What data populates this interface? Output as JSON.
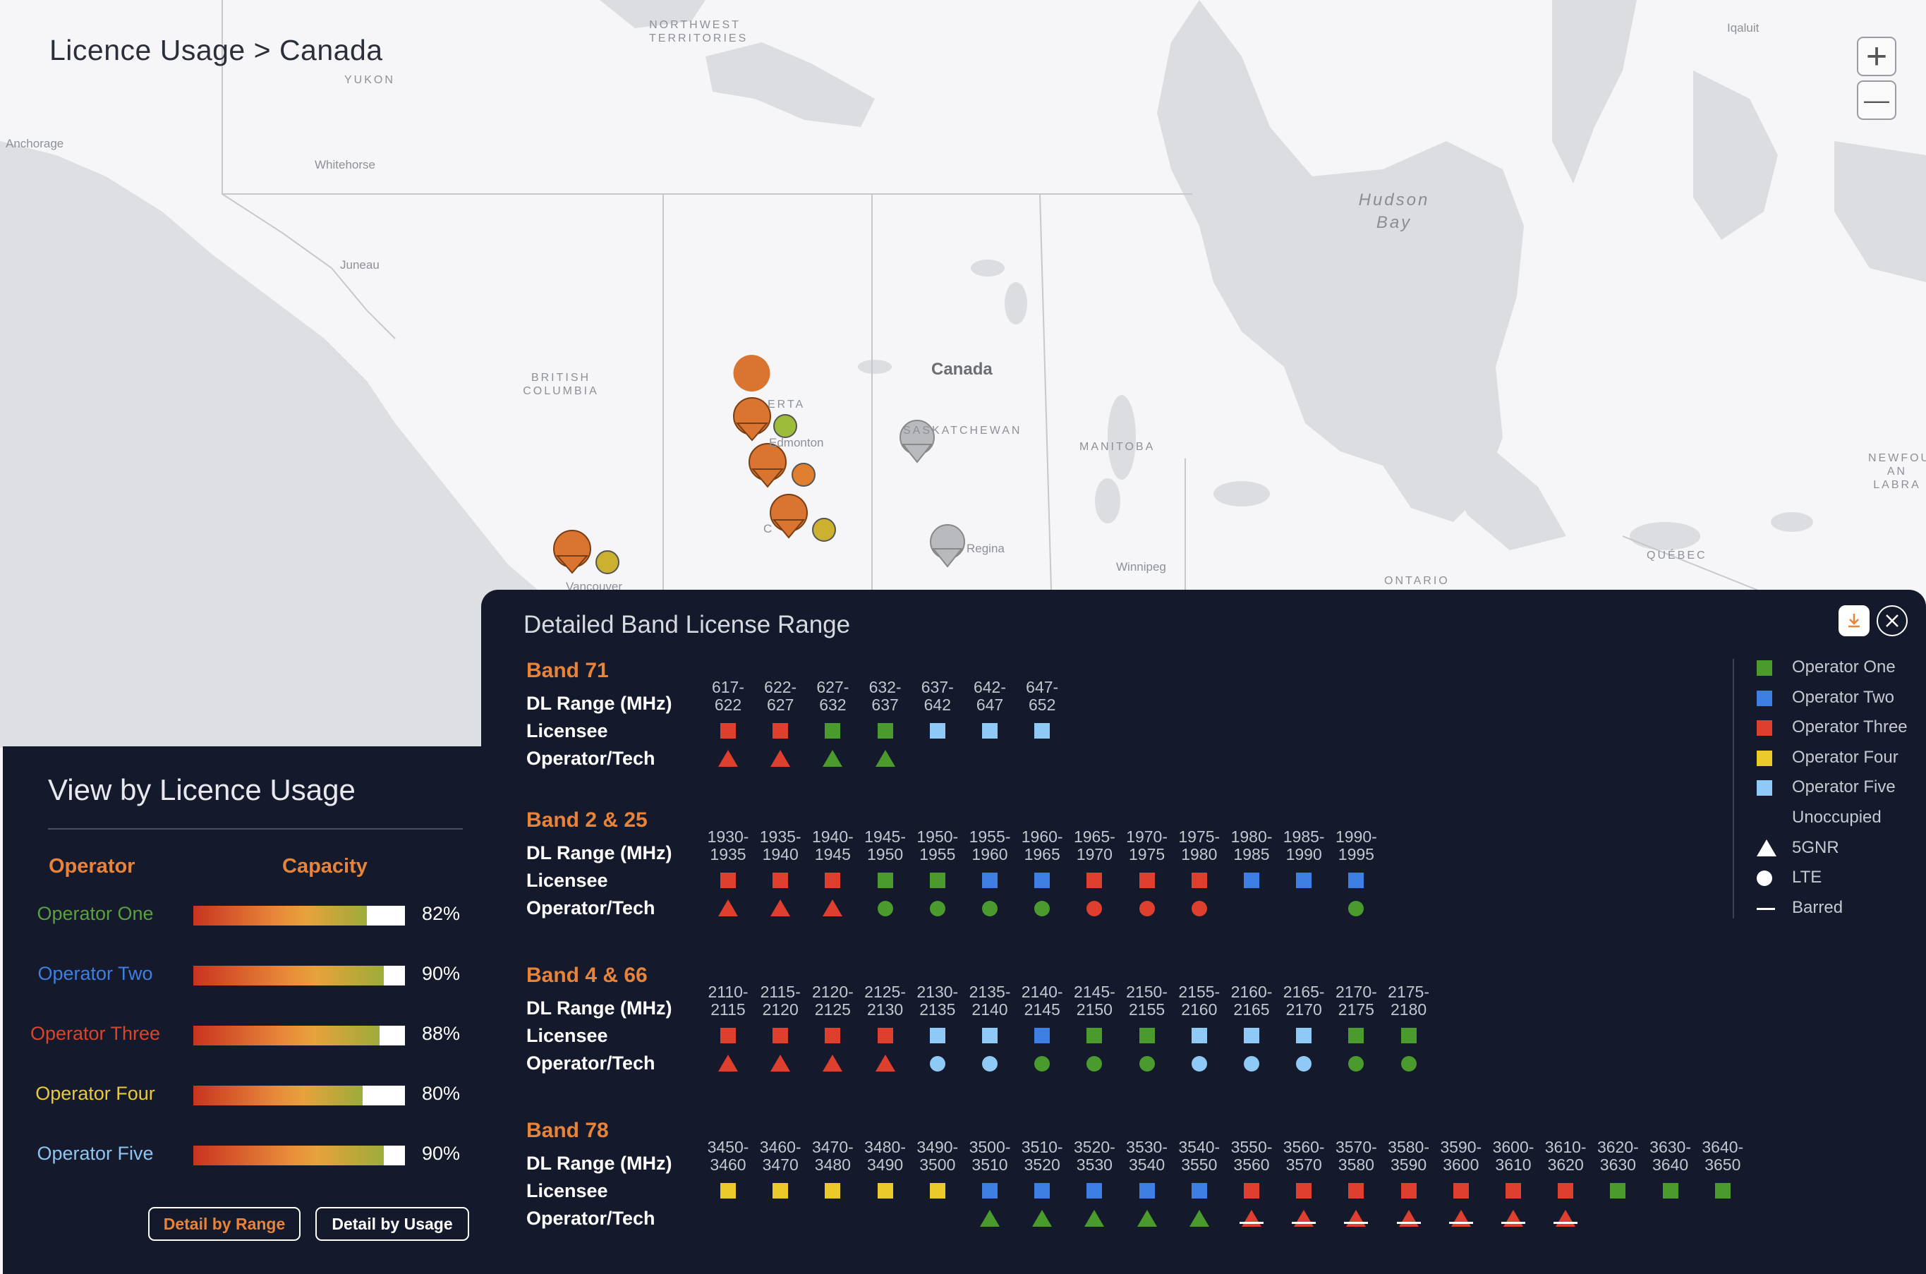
{
  "map": {
    "title": "Licence Usage > Canada",
    "zoom_in": "+",
    "zoom_out": "—",
    "labels": {
      "northwest_territories": "NORTHWEST TERRITORIES",
      "yukon": "YUKON",
      "anchorage": "Anchorage",
      "whitehorse": "Whitehorse",
      "juneau": "Juneau",
      "british_columbia": "BRITISH COLUMBIA",
      "alberta": "ERTA",
      "edmonton": "Edmonton",
      "calgary": "C",
      "saskatchewan": "SASKATCHEWAN",
      "canada": "Canada",
      "manitoba": "MANITOBA",
      "regina": "Regina",
      "winnipeg": "Winnipeg",
      "ontario": "ONTARIO",
      "quebec": "QUÉBEC",
      "newfoundland": "NEWFOU AN LABRA",
      "hudson_bay": "Hudson Bay",
      "iqaluit": "Iqaluit",
      "vancouver": "Vancouver"
    }
  },
  "usage_panel": {
    "title": "View by Licence Usage",
    "col_operator": "Operator",
    "col_capacity": "Capacity",
    "operators": [
      {
        "name": "Operator One",
        "color": "#5aa03c",
        "capacity": 82,
        "capacity_label": "82%"
      },
      {
        "name": "Operator Two",
        "color": "#3f7fe0",
        "capacity": 90,
        "capacity_label": "90%"
      },
      {
        "name": "Operator Three",
        "color": "#d8452c",
        "capacity": 88,
        "capacity_label": "88%"
      },
      {
        "name": "Operator Four",
        "color": "#e9c93a",
        "capacity": 80,
        "capacity_label": "80%"
      },
      {
        "name": "Operator Five",
        "color": "#8ec4f2",
        "capacity": 90,
        "capacity_label": "90%"
      }
    ],
    "btn_range": "Detail by Range",
    "btn_usage": "Detail by Usage"
  },
  "detail": {
    "title": "Detailed Band License Range",
    "row_dl": "DL Range (MHz)",
    "row_licensee": "Licensee",
    "row_tech": "Operator/Tech",
    "operator_colors": {
      "one": "#4a9a2e",
      "two": "#3d7fe3",
      "three": "#de3f2f",
      "four": "#ecca2c",
      "five": "#8fc9f5"
    },
    "bands": [
      {
        "name": "Band 71",
        "ranges": [
          "617-622",
          "622-627",
          "627-632",
          "632-637",
          "637-642",
          "642-647",
          "647-652"
        ],
        "licensee": [
          "three",
          "three",
          "one",
          "one",
          "five",
          "five",
          "five"
        ],
        "tech": [
          [
            "three",
            "5gnr"
          ],
          [
            "three",
            "5gnr"
          ],
          [
            "one",
            "5gnr"
          ],
          [
            "one",
            "5gnr"
          ],
          null,
          null,
          null
        ]
      },
      {
        "name": "Band 2 & 25",
        "ranges": [
          "1930-1935",
          "1935-1940",
          "1940-1945",
          "1945-1950",
          "1950-1955",
          "1955-1960",
          "1960-1965",
          "1965-1970",
          "1970-1975",
          "1975-1980",
          "1980-1985",
          "1985-1990",
          "1990-1995"
        ],
        "licensee": [
          "three",
          "three",
          "three",
          "one",
          "one",
          "two",
          "two",
          "three",
          "three",
          "three",
          "two",
          "two",
          "two"
        ],
        "tech": [
          [
            "three",
            "5gnr"
          ],
          [
            "three",
            "5gnr"
          ],
          [
            "three",
            "5gnr"
          ],
          [
            "one",
            "lte"
          ],
          [
            "one",
            "lte"
          ],
          [
            "one",
            "lte"
          ],
          [
            "one",
            "lte"
          ],
          [
            "three",
            "lte"
          ],
          [
            "three",
            "lte"
          ],
          [
            "three",
            "lte"
          ],
          null,
          null,
          [
            "one",
            "lte"
          ]
        ]
      },
      {
        "name": "Band 4 & 66",
        "ranges": [
          "2110-2115",
          "2115-2120",
          "2120-2125",
          "2125-2130",
          "2130-2135",
          "2135-2140",
          "2140-2145",
          "2145-2150",
          "2150-2155",
          "2155-2160",
          "2160-2165",
          "2165-2170",
          "2170-2175",
          "2175-2180"
        ],
        "licensee": [
          "three",
          "three",
          "three",
          "three",
          "five",
          "five",
          "two",
          "one",
          "one",
          "five",
          "five",
          "five",
          "one",
          "one"
        ],
        "tech": [
          [
            "three",
            "5gnr"
          ],
          [
            "three",
            "5gnr"
          ],
          [
            "three",
            "5gnr"
          ],
          [
            "three",
            "5gnr"
          ],
          [
            "five",
            "lte"
          ],
          [
            "five",
            "lte"
          ],
          [
            "one",
            "lte"
          ],
          [
            "one",
            "lte"
          ],
          [
            "one",
            "lte"
          ],
          [
            "five",
            "lte"
          ],
          [
            "five",
            "lte"
          ],
          [
            "five",
            "lte"
          ],
          [
            "one",
            "lte"
          ],
          [
            "one",
            "lte"
          ]
        ]
      },
      {
        "name": "Band 78",
        "ranges": [
          "3450-3460",
          "3460-3470",
          "3470-3480",
          "3480-3490",
          "3490-3500",
          "3500-3510",
          "3510-3520",
          "3520-3530",
          "3530-3540",
          "3540-3550",
          "3550-3560",
          "3560-3570",
          "3570-3580",
          "3580-3590",
          "3590-3600",
          "3600-3610",
          "3610-3620",
          "3620-3630",
          "3630-3640",
          "3640-3650"
        ],
        "licensee": [
          "four",
          "four",
          "four",
          "four",
          "four",
          "two",
          "two",
          "two",
          "two",
          "two",
          "three",
          "three",
          "three",
          "three",
          "three",
          "three",
          "three",
          "one",
          "one",
          "one"
        ],
        "tech": [
          null,
          null,
          null,
          null,
          null,
          [
            "one",
            "5gnr"
          ],
          [
            "one",
            "5gnr"
          ],
          [
            "one",
            "5gnr"
          ],
          [
            "one",
            "5gnr"
          ],
          [
            "one",
            "5gnr"
          ],
          [
            "three",
            "5gnr-barred"
          ],
          [
            "three",
            "5gnr-barred"
          ],
          [
            "three",
            "5gnr-barred"
          ],
          [
            "three",
            "5gnr-barred"
          ],
          [
            "three",
            "5gnr-barred"
          ],
          [
            "three",
            "5gnr-barred"
          ],
          [
            "three",
            "5gnr-barred"
          ],
          null,
          null,
          null
        ]
      }
    ],
    "legend": [
      {
        "label": "Operator One",
        "kind": "square",
        "color": "#4a9a2e"
      },
      {
        "label": "Operator Two",
        "kind": "square",
        "color": "#3d7fe3"
      },
      {
        "label": "Operator Three",
        "kind": "square",
        "color": "#de3f2f"
      },
      {
        "label": "Operator Four",
        "kind": "square",
        "color": "#ecca2c"
      },
      {
        "label": "Operator Five",
        "kind": "square",
        "color": "#8fc9f5"
      },
      {
        "label": "Unoccupied",
        "kind": "none",
        "color": ""
      },
      {
        "label": "5GNR",
        "kind": "triangle",
        "color": "#ffffff"
      },
      {
        "label": "LTE",
        "kind": "circle",
        "color": "#ffffff"
      },
      {
        "label": "Barred",
        "kind": "line",
        "color": "#ffffff"
      }
    ]
  }
}
